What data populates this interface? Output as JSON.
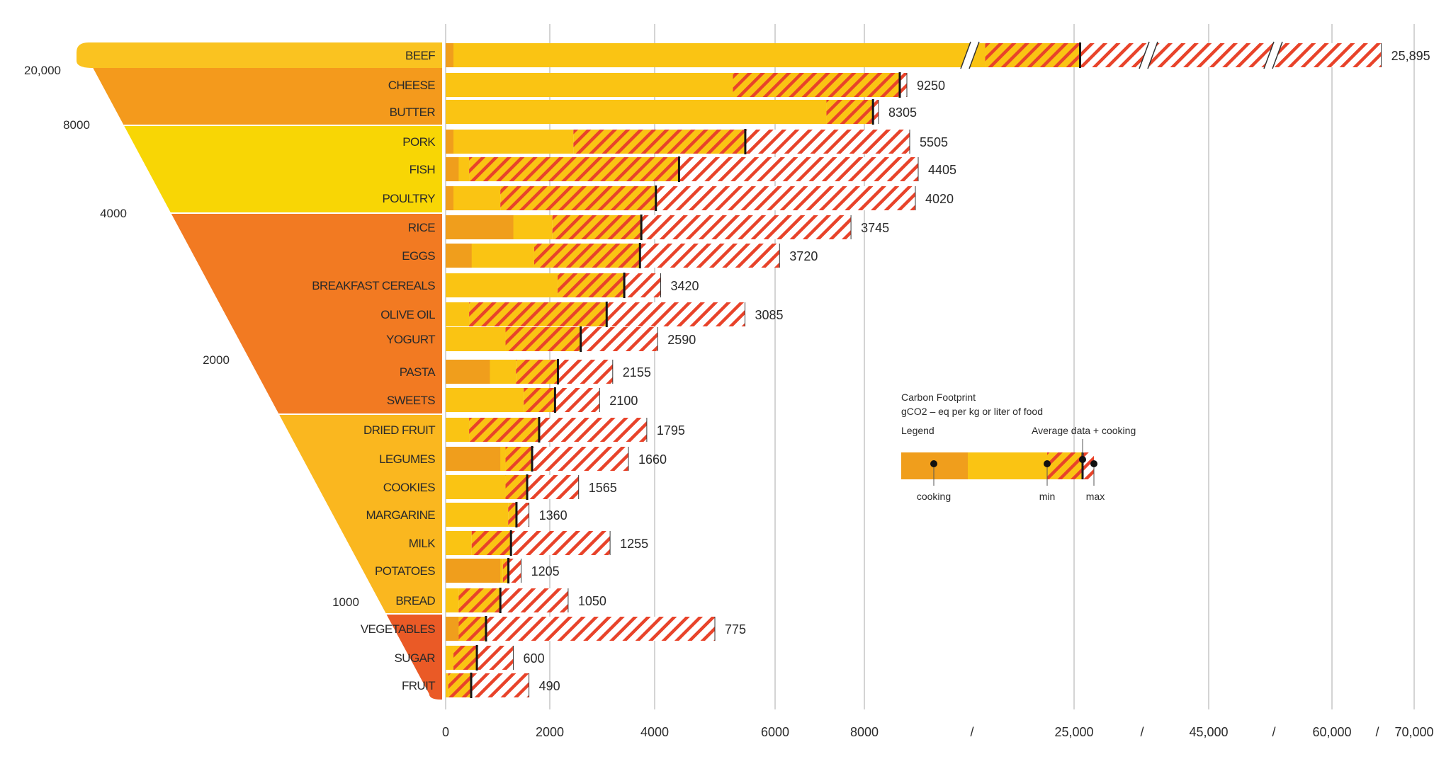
{
  "chart_data": {
    "type": "bar",
    "title": "Carbon Footprint",
    "subtitle": "gCO2 – eq per kg or liter of food",
    "legend": {
      "label": "Legend",
      "average_label": "Average data + cooking",
      "cooking_label": "cooking",
      "min_label": "min",
      "max_label": "max"
    },
    "categories": [
      "BEEF",
      "CHEESE",
      "BUTTER",
      "PORK",
      "FISH",
      "POULTRY",
      "RICE",
      "EGGS",
      "BREAKFAST CEREALS",
      "OLIVE OIL",
      "YOGURT",
      "PASTA",
      "SWEETS",
      "DRIED FRUIT",
      "LEGUMES",
      "COOKIES",
      "MARGARINE",
      "MILK",
      "POTATOES",
      "BREAD",
      "VEGETABLES",
      "SUGAR",
      "FRUIT"
    ],
    "series": [
      {
        "name": "average",
        "values": [
          25895,
          9250,
          8305,
          5505,
          4405,
          4020,
          3745,
          3720,
          3420,
          3085,
          2590,
          2155,
          2100,
          1795,
          1660,
          1565,
          1360,
          1255,
          1205,
          1050,
          775,
          600,
          490
        ]
      },
      {
        "name": "cooking",
        "values": [
          150,
          0,
          0,
          150,
          250,
          150,
          1300,
          500,
          0,
          0,
          0,
          850,
          0,
          0,
          1050,
          0,
          0,
          0,
          1050,
          0,
          250,
          0,
          0
        ]
      },
      {
        "name": "min",
        "values": [
          13000,
          5300,
          7150,
          2450,
          450,
          1050,
          2050,
          1700,
          2150,
          450,
          1150,
          1350,
          1500,
          450,
          1150,
          1150,
          1200,
          500,
          1100,
          250,
          250,
          150,
          50
        ]
      },
      {
        "name": "max",
        "values": [
          66000,
          9500,
          8500,
          9600,
          9900,
          9800,
          7700,
          6100,
          4100,
          5500,
          4050,
          3200,
          2950,
          3850,
          3500,
          2550,
          1600,
          3150,
          1450,
          2350,
          5000,
          1300,
          1600
        ]
      }
    ],
    "value_labels": [
      "25,895",
      "9250",
      "8305",
      "5505",
      "4405",
      "4020",
      "3745",
      "3720",
      "3420",
      "3085",
      "2590",
      "2155",
      "2100",
      "1795",
      "1660",
      "1565",
      "1360",
      "1255",
      "1205",
      "1050",
      "775",
      "600",
      "490"
    ],
    "x_ticks": [
      {
        "label": "0",
        "value": 0
      },
      {
        "label": "2000",
        "value": 2000
      },
      {
        "label": "4000",
        "value": 4000
      },
      {
        "label": "6000",
        "value": 6000
      },
      {
        "label": "8000",
        "value": 8000
      },
      {
        "label": "25,000",
        "value": 25000
      },
      {
        "label": "45,000",
        "value": 45000
      },
      {
        "label": "60,000",
        "value": 60000
      },
      {
        "label": "70,000",
        "value": 70000
      }
    ],
    "axis_breaks": [
      "/",
      "/",
      "/",
      "/"
    ],
    "funnel_labels": [
      "20,000",
      "8000",
      "4000",
      "2000",
      "1000"
    ],
    "colors": {
      "cooking": "#f09e1c",
      "bar": "#fac413",
      "hatch": "#e8432a",
      "funnel": [
        "#fac320",
        "#f49a1c",
        "#f8d605",
        "#f27a22",
        "#fab71f",
        "#ea5a26"
      ]
    }
  }
}
